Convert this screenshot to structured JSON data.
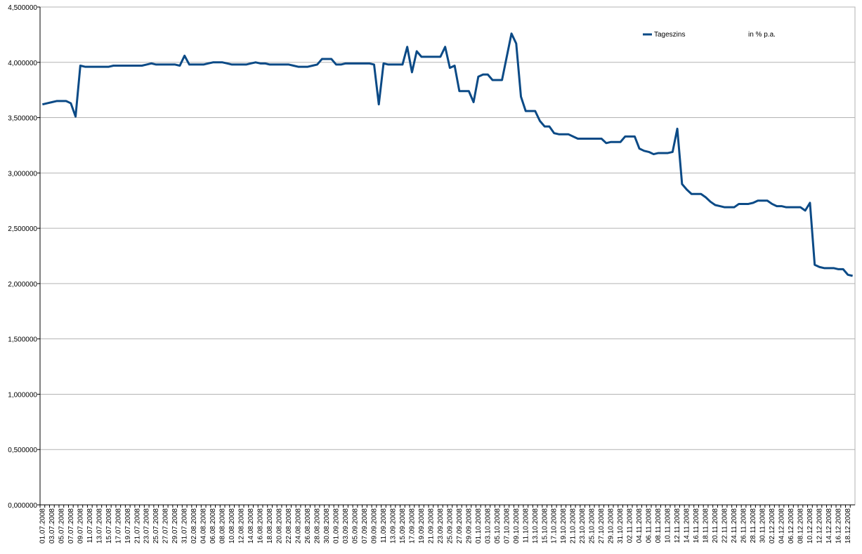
{
  "chart_data": {
    "type": "line",
    "categories": [
      "01.07.2008",
      null,
      "03.07.2008",
      null,
      "05.07.2008",
      null,
      "07.07.2008",
      null,
      "09.07.2008",
      null,
      "11.07.2008",
      null,
      "13.07.2008",
      null,
      "15.07.2008",
      null,
      "17.07.2008",
      null,
      "19.07.2008",
      null,
      "21.07.2008",
      null,
      "23.07.2008",
      null,
      "25.07.2008",
      null,
      "27.07.2008",
      null,
      "29.07.2008",
      null,
      "31.07.2008",
      null,
      "02.08.2008",
      null,
      "04.08.2008",
      null,
      "06.08.2008",
      null,
      "08.08.2008",
      null,
      "10.08.2008",
      null,
      "12.08.2008",
      null,
      "14.08.2008",
      null,
      "16.08.2008",
      null,
      "18.08.2008",
      null,
      "20.08.2008",
      null,
      "22.08.2008",
      null,
      "24.08.2008",
      null,
      "26.08.2008",
      null,
      "28.08.2008",
      null,
      "30.08.2008",
      null,
      "01.09.2008",
      null,
      "03.09.2008",
      null,
      "05.09.2008",
      null,
      "07.09.2008",
      null,
      "09.09.2008",
      null,
      "11.09.2008",
      null,
      "13.09.2008",
      null,
      "15.09.2008",
      null,
      "17.09.2008",
      null,
      "19.09.2008",
      null,
      "21.09.2008",
      null,
      "23.09.2008",
      null,
      "25.09.2008",
      null,
      "27.09.2008",
      null,
      "29.09.2008",
      null,
      "01.10.2008",
      null,
      "03.10.2008",
      null,
      "05.10.2008",
      null,
      "07.10.2008",
      null,
      "09.10.2008",
      null,
      "11.10.2008",
      null,
      "13.10.2008",
      null,
      "15.10.2008",
      null,
      "17.10.2008",
      null,
      "19.10.2008",
      null,
      "21.10.2008",
      null,
      "23.10.2008",
      null,
      "25.10.2008",
      null,
      "27.10.2008",
      null,
      "29.10.2008",
      null,
      "31.10.2008",
      null,
      "02.11.2008",
      null,
      "04.11.2008",
      null,
      "06.11.2008",
      null,
      "08.11.2008",
      null,
      "10.11.2008",
      null,
      "12.11.2008",
      null,
      "14.11.2008",
      null,
      "16.11.2008",
      null,
      "18.11.2008",
      null,
      "20.11.2008",
      null,
      "22.11.2008",
      null,
      "24.11.2008",
      null,
      "26.11.2008",
      null,
      "28.11.2008",
      null,
      "30.11.2008",
      null,
      "02.12.2008",
      null,
      "04.12.2008",
      null,
      "06.12.2008",
      null,
      "08.12.2008",
      null,
      "10.12.2008",
      null,
      "12.12.2008",
      null,
      "14.12.2008",
      null,
      "16.12.2008",
      null,
      "18.12.2008",
      null
    ],
    "series": [
      {
        "name": "Tageszins",
        "color": "#0b4a86",
        "values": [
          3.62,
          3.63,
          3.64,
          3.65,
          3.65,
          3.65,
          3.63,
          3.51,
          3.97,
          3.96,
          3.96,
          3.96,
          3.96,
          3.96,
          3.96,
          3.97,
          3.97,
          3.97,
          3.97,
          3.97,
          3.97,
          3.97,
          3.98,
          3.99,
          3.98,
          3.98,
          3.98,
          3.98,
          3.98,
          3.97,
          4.06,
          3.98,
          3.98,
          3.98,
          3.98,
          3.99,
          4.0,
          4.0,
          4.0,
          3.99,
          3.98,
          3.98,
          3.98,
          3.98,
          3.99,
          4.0,
          3.99,
          3.99,
          3.98,
          3.98,
          3.98,
          3.98,
          3.98,
          3.97,
          3.96,
          3.96,
          3.96,
          3.97,
          3.98,
          4.03,
          4.03,
          4.03,
          3.98,
          3.98,
          3.99,
          3.99,
          3.99,
          3.99,
          3.99,
          3.99,
          3.98,
          3.62,
          3.99,
          3.98,
          3.98,
          3.98,
          3.98,
          4.14,
          3.91,
          4.1,
          4.05,
          4.05,
          4.05,
          4.05,
          4.05,
          4.14,
          3.95,
          3.97,
          3.74,
          3.74,
          3.74,
          3.64,
          3.87,
          3.89,
          3.89,
          3.84,
          3.84,
          3.84,
          4.05,
          4.26,
          4.17,
          3.69,
          3.56,
          3.56,
          3.56,
          3.47,
          3.42,
          3.42,
          3.36,
          3.35,
          3.35,
          3.35,
          3.33,
          3.31,
          3.31,
          3.31,
          3.31,
          3.31,
          3.31,
          3.27,
          3.28,
          3.28,
          3.28,
          3.33,
          3.33,
          3.33,
          3.22,
          3.2,
          3.19,
          3.17,
          3.18,
          3.18,
          3.18,
          3.19,
          3.4,
          2.9,
          2.85,
          2.81,
          2.81,
          2.81,
          2.78,
          2.74,
          2.71,
          2.7,
          2.69,
          2.69,
          2.69,
          2.72,
          2.72,
          2.72,
          2.73,
          2.75,
          2.75,
          2.75,
          2.72,
          2.7,
          2.7,
          2.69,
          2.69,
          2.69,
          2.69,
          2.66,
          2.73,
          2.17,
          2.15,
          2.14,
          2.14,
          2.14,
          2.13,
          2.13,
          2.08,
          2.07
        ]
      }
    ],
    "unit_label": "in % p.a.",
    "ylim": [
      0,
      4.5
    ],
    "yticks": [
      {
        "value": 0,
        "label": "0,000000"
      },
      {
        "value": 0.5,
        "label": "0,500000"
      },
      {
        "value": 1,
        "label": "1,000000"
      },
      {
        "value": 1.5,
        "label": "1,500000"
      },
      {
        "value": 2,
        "label": "2,000000"
      },
      {
        "value": 2.5,
        "label": "2,500000"
      },
      {
        "value": 3,
        "label": "3,000000"
      },
      {
        "value": 3.5,
        "label": "3,500000"
      },
      {
        "value": 4,
        "label": "4,000000"
      },
      {
        "value": 4.5,
        "label": "4,500000"
      }
    ],
    "grid": true
  }
}
